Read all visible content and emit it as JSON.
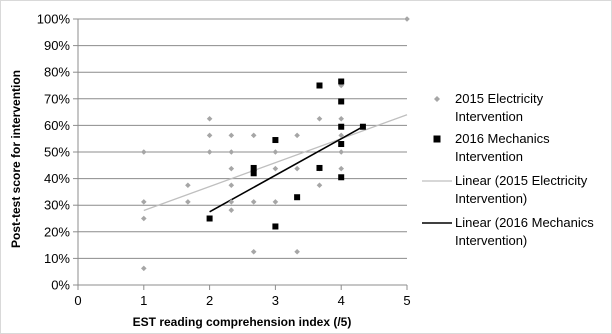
{
  "chart_data": {
    "type": "scatter",
    "xlabel": "EST reading comprehension index (/5)",
    "ylabel": "Post-test score for intervention",
    "xlim": [
      0,
      5
    ],
    "ylim": [
      0,
      100
    ],
    "x_ticks": [
      "0",
      "1",
      "2",
      "3",
      "4",
      "5"
    ],
    "y_ticks": [
      "0%",
      "10%",
      "20%",
      "30%",
      "40%",
      "50%",
      "60%",
      "70%",
      "80%",
      "90%",
      "100%"
    ],
    "grid": "horizontal",
    "legend_position": "right",
    "series": [
      {
        "name": "2015 Electricity Intervention",
        "marker": "diamond",
        "color": "#a6a6a6",
        "points": [
          [
            1,
            6.25
          ],
          [
            1,
            25
          ],
          [
            1,
            31.25
          ],
          [
            1,
            50
          ],
          [
            1.67,
            31.25
          ],
          [
            1.67,
            37.5
          ],
          [
            2,
            25
          ],
          [
            2,
            50
          ],
          [
            2,
            56.25
          ],
          [
            2,
            62.5
          ],
          [
            2.33,
            28.13
          ],
          [
            2.33,
            31.25
          ],
          [
            2.33,
            37.5
          ],
          [
            2.33,
            43.75
          ],
          [
            2.33,
            50
          ],
          [
            2.33,
            56.25
          ],
          [
            2.67,
            12.5
          ],
          [
            2.67,
            31.25
          ],
          [
            2.67,
            43.75
          ],
          [
            2.67,
            56.25
          ],
          [
            3,
            31.25
          ],
          [
            3,
            43.75
          ],
          [
            3,
            50
          ],
          [
            3.33,
            12.5
          ],
          [
            3.33,
            43.75
          ],
          [
            3.33,
            56.25
          ],
          [
            3.67,
            37.5
          ],
          [
            3.67,
            43.75
          ],
          [
            3.67,
            62.5
          ],
          [
            4,
            43.75
          ],
          [
            4,
            50
          ],
          [
            4,
            56.25
          ],
          [
            4,
            62.5
          ],
          [
            4,
            75
          ],
          [
            4.33,
            59.38
          ],
          [
            5,
            100
          ]
        ]
      },
      {
        "name": "2016 Mechanics Intervention",
        "marker": "square",
        "color": "#000000",
        "points": [
          [
            2,
            25
          ],
          [
            2.67,
            42
          ],
          [
            2.67,
            44
          ],
          [
            3,
            22
          ],
          [
            3,
            54.5
          ],
          [
            3.33,
            33
          ],
          [
            3.67,
            44
          ],
          [
            3.67,
            75
          ],
          [
            4,
            40.5
          ],
          [
            4,
            53
          ],
          [
            4,
            59.5
          ],
          [
            4,
            69
          ],
          [
            4,
            76.5
          ],
          [
            4.33,
            59.5
          ]
        ]
      },
      {
        "name": "Linear (2015 Electricity Intervention)",
        "type": "trendline",
        "color": "#bfbfbf",
        "points": [
          [
            1,
            28
          ],
          [
            5,
            64
          ]
        ]
      },
      {
        "name": "Linear (2016 Mechanics Intervention)",
        "type": "trendline",
        "color": "#000000",
        "points": [
          [
            2,
            27.5
          ],
          [
            4.33,
            59.5
          ]
        ]
      }
    ],
    "legend": [
      [
        "2015 Electricity",
        "Intervention"
      ],
      [
        "2016 Mechanics",
        "Intervention"
      ],
      [
        "Linear (2015 Electricity",
        "Intervention)"
      ],
      [
        "Linear (2016 Mechanics",
        "Intervention)"
      ]
    ]
  }
}
